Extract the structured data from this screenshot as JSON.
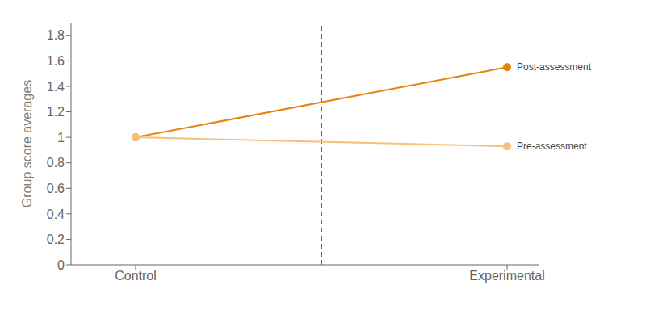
{
  "chart_data": {
    "type": "line",
    "categories": [
      "Control",
      "Experimental"
    ],
    "series": [
      {
        "name": "Post-assessment",
        "color": "#E8820C",
        "values": [
          1.0,
          1.55
        ],
        "marker": "circle"
      },
      {
        "name": "Pre-assessment",
        "color": "#F5C07A",
        "values": [
          1.0,
          0.93
        ],
        "marker": "circle"
      }
    ],
    "ylabel": "Group score averages",
    "ylim": [
      0,
      1.9
    ],
    "yticks": [
      0,
      0.2,
      0.4,
      0.6,
      0.8,
      1.0,
      1.2,
      1.4,
      1.6,
      1.8
    ],
    "grid": false
  }
}
